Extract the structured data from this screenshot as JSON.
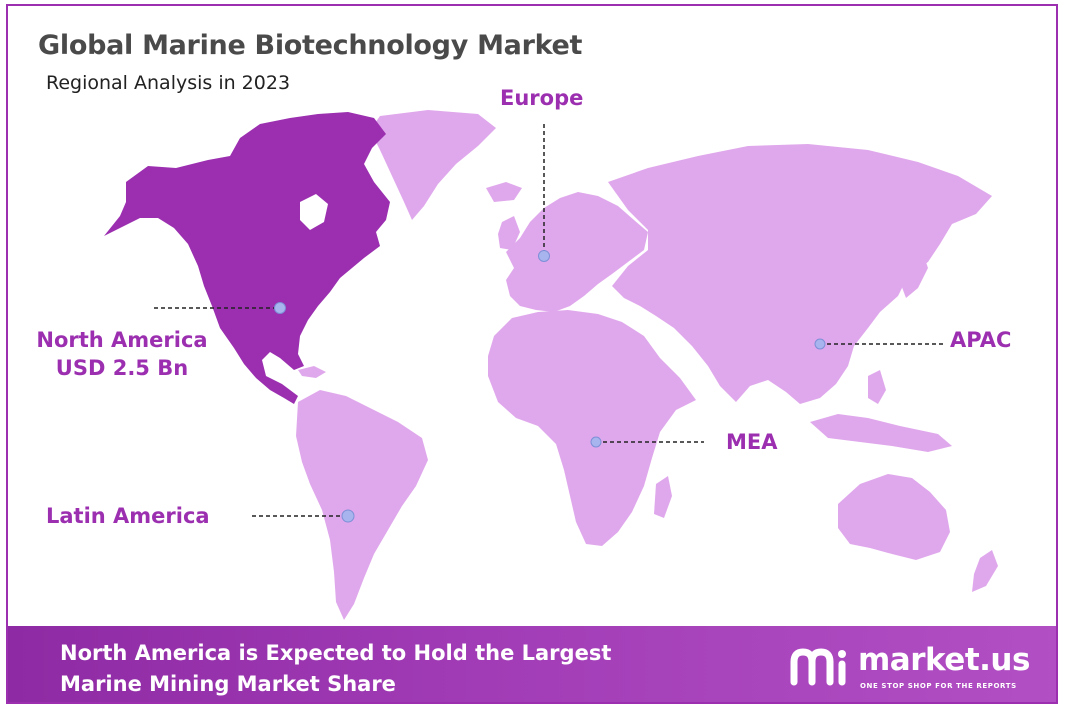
{
  "title": "Global Marine Biotechnology Market",
  "subtitle": "Regional Analysis in 2023",
  "colors": {
    "highlight_region": "#9b2fb0",
    "other_regions": "#e0a8ec",
    "marker": "#a8b4ee",
    "label_text": "#9b2fb0",
    "footer_band": "#9b34b0"
  },
  "regions": {
    "north_america": {
      "name": "North America",
      "value": "USD 2.5 Bn",
      "highlighted": true
    },
    "europe": {
      "name": "Europe"
    },
    "apac": {
      "name": "APAC"
    },
    "mea": {
      "name": "MEA"
    },
    "latin_america": {
      "name": "Latin America"
    }
  },
  "footer": {
    "line1": "North America is Expected to Hold the Largest",
    "line2": "Marine Mining Market Share"
  },
  "logo": {
    "name": "market.us",
    "tagline": "ONE STOP SHOP FOR THE REPORTS"
  }
}
